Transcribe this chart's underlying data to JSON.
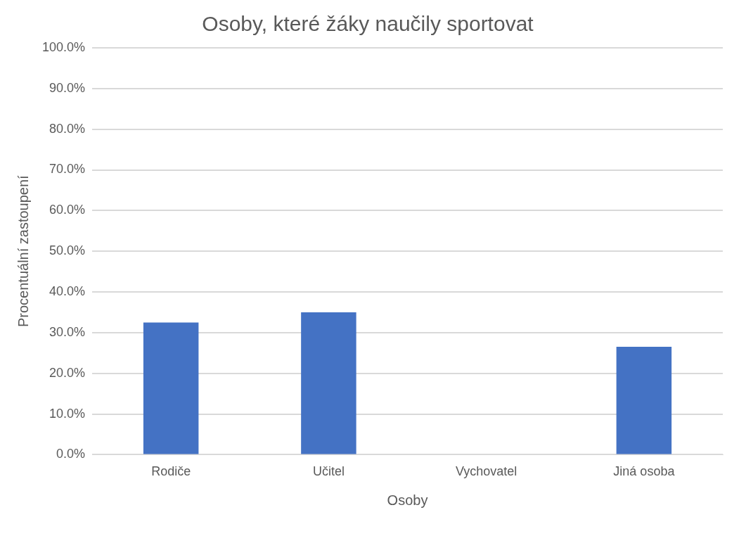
{
  "chart_data": {
    "type": "bar",
    "title": "Osoby, které žáky naučily sportovat",
    "xlabel": "Osoby",
    "ylabel": "Procentuální zastoupení",
    "categories": [
      "Rodiče",
      "Učitel",
      "Vychovatel",
      "Jiná osoba"
    ],
    "values": [
      32.5,
      35.0,
      0,
      26.5
    ],
    "color": "#4472c4",
    "ylim": [
      0,
      100
    ],
    "yticks": [
      {
        "value": 0,
        "label": "0.0%"
      },
      {
        "value": 10,
        "label": "10.0%"
      },
      {
        "value": 20,
        "label": "20.0%"
      },
      {
        "value": 30,
        "label": "30.0%"
      },
      {
        "value": 40,
        "label": "40.0%"
      },
      {
        "value": 50,
        "label": "50.0%"
      },
      {
        "value": 60,
        "label": "60.0%"
      },
      {
        "value": 70,
        "label": "70.0%"
      },
      {
        "value": 80,
        "label": "80.0%"
      },
      {
        "value": 90,
        "label": "90.0%"
      },
      {
        "value": 100,
        "label": "100.0%"
      }
    ],
    "grid": "y",
    "legend": false
  }
}
